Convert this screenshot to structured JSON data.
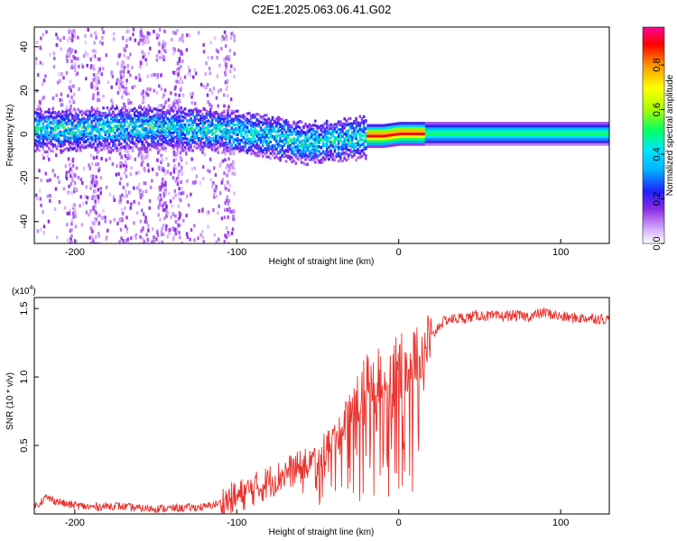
{
  "figure": {
    "title": "C2E1.2025.063.06.41.G02"
  },
  "chart_data": [
    {
      "type": "heatmap",
      "xlabel": "Height of straight line (km)",
      "ylabel": "Frequency (Hz)",
      "xlim": [
        -225,
        130
      ],
      "ylim": [
        -50,
        49
      ],
      "x_ticks": [
        -200,
        -100,
        0,
        100
      ],
      "y_ticks": [
        -40,
        -20,
        0,
        20,
        40
      ],
      "colorbar": {
        "label": "Normalized spectral amplitude",
        "range": [
          0,
          0.97
        ],
        "ticks": [
          0.0,
          0.2,
          0.4,
          0.6,
          0.8
        ],
        "colormap": [
          "#ffffff",
          "#d9b3ff",
          "#8a2be2",
          "#1f1fff",
          "#00e5ff",
          "#00ff66",
          "#aaff00",
          "#ffff00",
          "#ff9900",
          "#ff0000",
          "#ff0099"
        ]
      },
      "ridge": {
        "x": [
          -225,
          -200,
          -150,
          -120,
          -100,
          -80,
          -60,
          -40,
          -30,
          -20,
          -10,
          0,
          20,
          50,
          100,
          130
        ],
        "frequency": [
          3,
          3,
          4,
          3,
          2,
          0,
          -3,
          -2,
          -1,
          0,
          0,
          1,
          1,
          1,
          1,
          1
        ]
      }
    },
    {
      "type": "line",
      "xlabel": "Height of straight line (km)",
      "ylabel": "SNR (10 * v/v)",
      "y_multiplier": "(x10^4)",
      "xlim": [
        -225,
        130
      ],
      "ylim": [
        0,
        1.58
      ],
      "x_ticks": [
        -200,
        -100,
        0,
        100
      ],
      "y_ticks": [
        0.5,
        1.0,
        1.5
      ],
      "series": [
        {
          "color": "#e8332e",
          "x": [
            -225,
            -218,
            -205,
            -190,
            -175,
            -160,
            -140,
            -120,
            -110,
            -100,
            -95,
            -90,
            -85,
            -80,
            -75,
            -70,
            -65,
            -60,
            -55,
            -50,
            -45,
            -40,
            -35,
            -30,
            -25,
            -20,
            -15,
            -10,
            -5,
            0,
            5,
            10,
            15,
            20,
            25,
            30,
            40,
            50,
            60,
            70,
            80,
            90,
            100,
            110,
            120,
            130
          ],
          "values": [
            0.05,
            0.12,
            0.07,
            0.05,
            0.06,
            0.04,
            0.04,
            0.05,
            0.08,
            0.12,
            0.15,
            0.18,
            0.2,
            0.24,
            0.26,
            0.3,
            0.32,
            0.34,
            0.38,
            0.4,
            0.5,
            0.55,
            0.65,
            0.8,
            0.85,
            0.95,
            0.98,
            1.0,
            1.05,
            1.08,
            1.12,
            1.16,
            1.2,
            1.28,
            1.38,
            1.42,
            1.43,
            1.45,
            1.44,
            1.45,
            1.44,
            1.47,
            1.44,
            1.43,
            1.43,
            1.42
          ]
        }
      ]
    }
  ]
}
